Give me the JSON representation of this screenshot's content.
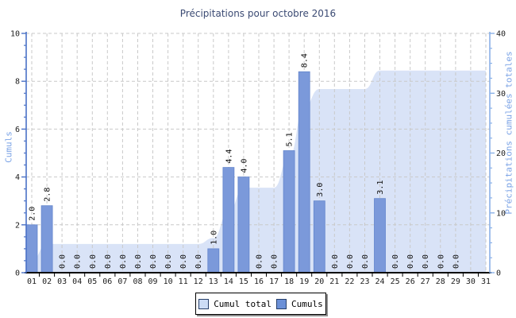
{
  "title": "Précipitations pour octobre 2016",
  "left_axis": {
    "label": "Cumuls",
    "min": 0,
    "max": 10,
    "major_ticks": [
      0,
      2,
      4,
      6,
      8,
      10
    ],
    "minor_step": 0.5
  },
  "right_axis": {
    "label": "Précipitations cumulées totales",
    "min": 0,
    "max": 40,
    "major_ticks": [
      0,
      10,
      20,
      30,
      40
    ],
    "minor_step": 2.5
  },
  "legend": [
    {
      "label": "Cumul total",
      "color": "#ccdcf5",
      "series_type": "area"
    },
    {
      "label": "Cumuls",
      "color": "#6b90d7",
      "series_type": "bar"
    }
  ],
  "colors": {
    "bar_fill": "#7b99da",
    "bar_edge": "#6385cc",
    "area_fill": "#d9e3f7",
    "gridline": "#c9c9c9",
    "left_axis_line": "#4a71c6",
    "right_axis_line": "#8ab1e8",
    "x_axis_line": "#000000",
    "tick_text": "#1c1c1c",
    "value_label_text": "#111111",
    "title_text": "#3b4a73",
    "axis_label_text": "#7ba3e6"
  },
  "chart_data": {
    "type": "bar",
    "title": "Précipitations pour octobre 2016",
    "xlabel": "",
    "categories": [
      "01",
      "02",
      "03",
      "04",
      "05",
      "06",
      "07",
      "08",
      "09",
      "10",
      "11",
      "12",
      "13",
      "14",
      "15",
      "16",
      "17",
      "18",
      "19",
      "20",
      "21",
      "22",
      "23",
      "24",
      "25",
      "26",
      "27",
      "28",
      "29",
      "30",
      "31"
    ],
    "series": [
      {
        "name": "Cumuls",
        "type": "bar",
        "axis": "left",
        "ylabel": "Cumuls",
        "ylim": [
          0,
          10
        ],
        "values": [
          2.0,
          2.8,
          0.0,
          0.0,
          0.0,
          0.0,
          0.0,
          0.0,
          0.0,
          0.0,
          0.0,
          0.0,
          1.0,
          4.4,
          4.0,
          0.0,
          0.0,
          5.1,
          8.4,
          3.0,
          0.0,
          0.0,
          0.0,
          3.1,
          0.0,
          0.0,
          0.0,
          0.0,
          0.0,
          null,
          null
        ]
      },
      {
        "name": "Cumul total",
        "type": "area",
        "axis": "right",
        "ylabel": "Précipitations cumulées totales",
        "ylim": [
          0,
          40
        ],
        "values": [
          2.0,
          4.8,
          4.8,
          4.8,
          4.8,
          4.8,
          4.8,
          4.8,
          4.8,
          4.8,
          4.8,
          4.8,
          5.8,
          10.2,
          14.2,
          14.2,
          14.2,
          19.3,
          27.7,
          30.7,
          30.7,
          30.7,
          30.7,
          33.8,
          33.8,
          33.8,
          33.8,
          33.8,
          33.8,
          33.8,
          33.8
        ]
      }
    ],
    "grid": "dashed, horizontal at left-axis majors and vertical at each day",
    "legend_position": "bottom-center"
  }
}
